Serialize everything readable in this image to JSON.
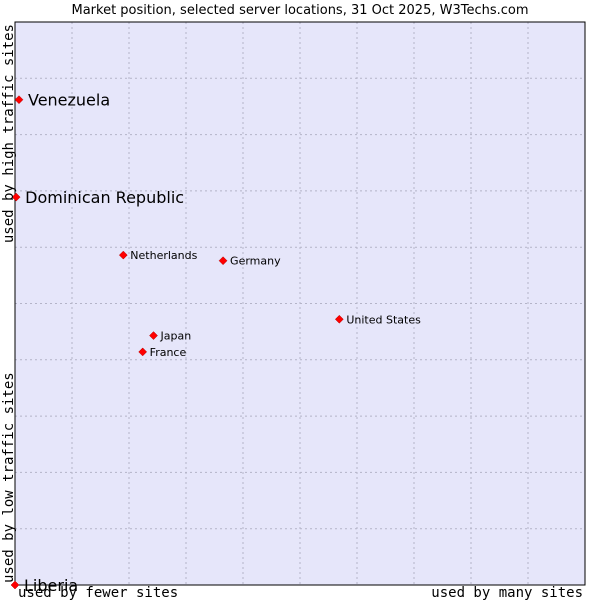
{
  "chart_data": {
    "type": "scatter",
    "title": "Market position, selected server locations, 31 Oct 2025, W3Techs.com",
    "xlabel_left": "used by fewer sites",
    "xlabel_right": "used by many sites",
    "ylabel_bottom": "used by low traffic sites",
    "ylabel_top": "used by high traffic sites",
    "xlim": [
      0,
      100
    ],
    "ylim": [
      0,
      100
    ],
    "grid": true,
    "point_color": "#ff0000",
    "plot_background": "#e6e6fa",
    "points": [
      {
        "label": "Venezuela",
        "x": 0.7,
        "y": 86.2,
        "emphasis": true
      },
      {
        "label": "Dominican Republic",
        "x": 0.2,
        "y": 68.9,
        "emphasis": true
      },
      {
        "label": "Netherlands",
        "x": 19.0,
        "y": 58.6,
        "emphasis": false
      },
      {
        "label": "Germany",
        "x": 36.5,
        "y": 57.6,
        "emphasis": false
      },
      {
        "label": "United States",
        "x": 56.9,
        "y": 47.2,
        "emphasis": false
      },
      {
        "label": "Japan",
        "x": 24.3,
        "y": 44.3,
        "emphasis": false
      },
      {
        "label": "France",
        "x": 22.4,
        "y": 41.4,
        "emphasis": false
      },
      {
        "label": "Liberia",
        "x": 0.0,
        "y": 0.0,
        "emphasis": true
      }
    ]
  }
}
